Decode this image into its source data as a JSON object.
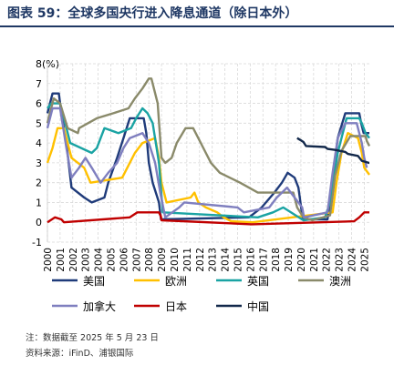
{
  "page": {
    "title": "图表 59：全球多国央行进入降息通道（除日本外）",
    "note": "注：数据截至 2025 年 5 月 23 日",
    "source": "资料来源：iFinD、浦银国际"
  },
  "chart_data": {
    "type": "line",
    "title": "",
    "ylabel": "(%)",
    "ylim": [
      -1,
      8
    ],
    "yticks": [
      -1,
      0,
      1,
      2,
      3,
      4,
      5,
      6,
      7,
      8
    ],
    "xlim": [
      2000,
      2025.4
    ],
    "xticks": [
      "2000",
      "2001",
      "2002",
      "2003",
      "2004",
      "2005",
      "2006",
      "2007",
      "2008",
      "2009",
      "2010",
      "2011",
      "2012",
      "2013",
      "2014",
      "2015",
      "2016",
      "2017",
      "2018",
      "2019",
      "2020",
      "2021",
      "2022",
      "2023",
      "2024",
      "2025"
    ],
    "legend_position": "bottom",
    "series": [
      {
        "name": "美国",
        "color": "#1f3b7a",
        "points": [
          [
            2000,
            5.5
          ],
          [
            2000.4,
            6.5
          ],
          [
            2000.9,
            6.5
          ],
          [
            2001.1,
            5.5
          ],
          [
            2001.5,
            4.0
          ],
          [
            2001.9,
            1.75
          ],
          [
            2002.9,
            1.25
          ],
          [
            2003.5,
            1.0
          ],
          [
            2004.5,
            1.25
          ],
          [
            2004.8,
            2.0
          ],
          [
            2005.5,
            3.25
          ],
          [
            2006.0,
            4.25
          ],
          [
            2006.5,
            5.25
          ],
          [
            2007.6,
            5.25
          ],
          [
            2007.8,
            4.5
          ],
          [
            2008.0,
            3.0
          ],
          [
            2008.3,
            2.0
          ],
          [
            2008.8,
            1.0
          ],
          [
            2008.96,
            0.15
          ],
          [
            2015.9,
            0.25
          ],
          [
            2016.9,
            0.75
          ],
          [
            2017.9,
            1.5
          ],
          [
            2018.5,
            2.0
          ],
          [
            2018.95,
            2.5
          ],
          [
            2019.5,
            2.25
          ],
          [
            2019.8,
            1.75
          ],
          [
            2020.15,
            0.15
          ],
          [
            2022.1,
            0.15
          ],
          [
            2022.4,
            1.5
          ],
          [
            2022.9,
            4.25
          ],
          [
            2023.5,
            5.5
          ],
          [
            2024.6,
            5.5
          ],
          [
            2024.75,
            5.0
          ],
          [
            2024.95,
            4.5
          ],
          [
            2025.4,
            4.5
          ]
        ]
      },
      {
        "name": "欧洲",
        "color": "#ffc000",
        "points": [
          [
            2000,
            3.0
          ],
          [
            2000.4,
            3.75
          ],
          [
            2000.8,
            4.75
          ],
          [
            2001.3,
            4.75
          ],
          [
            2001.7,
            3.75
          ],
          [
            2001.9,
            3.25
          ],
          [
            2002.9,
            2.75
          ],
          [
            2003.4,
            2.0
          ],
          [
            2005.9,
            2.25
          ],
          [
            2006.5,
            3.0
          ],
          [
            2006.9,
            3.5
          ],
          [
            2007.5,
            4.0
          ],
          [
            2008.5,
            4.25
          ],
          [
            2008.8,
            3.25
          ],
          [
            2009.0,
            2.0
          ],
          [
            2009.4,
            1.0
          ],
          [
            2011.3,
            1.25
          ],
          [
            2011.6,
            1.5
          ],
          [
            2011.9,
            1.0
          ],
          [
            2012.5,
            0.75
          ],
          [
            2013.4,
            0.5
          ],
          [
            2013.9,
            0.25
          ],
          [
            2014.5,
            0.05
          ],
          [
            2016.2,
            0.0
          ],
          [
            2022.5,
            0.5
          ],
          [
            2022.8,
            2.0
          ],
          [
            2023.2,
            3.5
          ],
          [
            2023.7,
            4.5
          ],
          [
            2024.5,
            4.25
          ],
          [
            2024.8,
            3.5
          ],
          [
            2025.0,
            2.75
          ],
          [
            2025.4,
            2.4
          ]
        ]
      },
      {
        "name": "英国",
        "color": "#1aa3a3",
        "points": [
          [
            2000,
            5.75
          ],
          [
            2000.3,
            6.0
          ],
          [
            2001.0,
            6.0
          ],
          [
            2001.4,
            5.0
          ],
          [
            2001.8,
            4.0
          ],
          [
            2003.5,
            3.5
          ],
          [
            2003.9,
            3.75
          ],
          [
            2004.5,
            4.75
          ],
          [
            2005.6,
            4.5
          ],
          [
            2006.6,
            4.75
          ],
          [
            2007.0,
            5.25
          ],
          [
            2007.5,
            5.75
          ],
          [
            2007.9,
            5.5
          ],
          [
            2008.3,
            5.0
          ],
          [
            2008.8,
            3.0
          ],
          [
            2009.1,
            0.5
          ],
          [
            2016.6,
            0.25
          ],
          [
            2017.8,
            0.5
          ],
          [
            2018.6,
            0.75
          ],
          [
            2020.2,
            0.1
          ],
          [
            2021.9,
            0.25
          ],
          [
            2022.3,
            1.0
          ],
          [
            2022.9,
            3.5
          ],
          [
            2023.6,
            5.25
          ],
          [
            2024.6,
            5.25
          ],
          [
            2024.8,
            5.0
          ],
          [
            2025.1,
            4.5
          ],
          [
            2025.4,
            4.25
          ]
        ]
      },
      {
        "name": "澳洲",
        "color": "#8a8a6a",
        "points": [
          [
            2000,
            5.0
          ],
          [
            2000.5,
            6.25
          ],
          [
            2001.0,
            6.0
          ],
          [
            2001.6,
            4.75
          ],
          [
            2002.4,
            4.5
          ],
          [
            2002.5,
            4.75
          ],
          [
            2003.9,
            5.25
          ],
          [
            2005.2,
            5.5
          ],
          [
            2006.4,
            5.75
          ],
          [
            2006.9,
            6.25
          ],
          [
            2007.5,
            6.75
          ],
          [
            2008.0,
            7.25
          ],
          [
            2008.2,
            7.25
          ],
          [
            2008.7,
            6.0
          ],
          [
            2009.0,
            3.25
          ],
          [
            2009.3,
            3.0
          ],
          [
            2009.8,
            3.25
          ],
          [
            2010.2,
            4.0
          ],
          [
            2010.9,
            4.75
          ],
          [
            2011.5,
            4.75
          ],
          [
            2011.9,
            4.25
          ],
          [
            2012.5,
            3.5
          ],
          [
            2012.9,
            3.0
          ],
          [
            2013.6,
            2.5
          ],
          [
            2015.2,
            2.0
          ],
          [
            2016.6,
            1.5
          ],
          [
            2019.4,
            1.5
          ],
          [
            2019.7,
            0.75
          ],
          [
            2020.2,
            0.25
          ],
          [
            2020.9,
            0.1
          ],
          [
            2022.3,
            0.35
          ],
          [
            2022.7,
            2.35
          ],
          [
            2023.2,
            3.6
          ],
          [
            2023.9,
            4.35
          ],
          [
            2025.1,
            4.35
          ],
          [
            2025.2,
            4.1
          ],
          [
            2025.4,
            3.85
          ]
        ]
      },
      {
        "name": "加拿大",
        "color": "#7f7fbf",
        "points": [
          [
            2000,
            4.75
          ],
          [
            2000.4,
            5.75
          ],
          [
            2001.0,
            5.75
          ],
          [
            2001.5,
            3.75
          ],
          [
            2001.9,
            2.25
          ],
          [
            2002.5,
            2.75
          ],
          [
            2003.0,
            3.25
          ],
          [
            2003.5,
            2.75
          ],
          [
            2004.2,
            2.0
          ],
          [
            2004.8,
            2.5
          ],
          [
            2005.5,
            3.0
          ],
          [
            2006.0,
            3.75
          ],
          [
            2006.5,
            4.25
          ],
          [
            2007.5,
            4.5
          ],
          [
            2008.0,
            4.0
          ],
          [
            2008.5,
            3.0
          ],
          [
            2008.9,
            1.5
          ],
          [
            2009.3,
            0.25
          ],
          [
            2010.4,
            0.75
          ],
          [
            2010.8,
            1.0
          ],
          [
            2015.0,
            0.75
          ],
          [
            2015.5,
            0.5
          ],
          [
            2017.5,
            0.75
          ],
          [
            2017.8,
            1.0
          ],
          [
            2018.1,
            1.25
          ],
          [
            2018.5,
            1.5
          ],
          [
            2018.9,
            1.75
          ],
          [
            2020.1,
            0.75
          ],
          [
            2020.25,
            0.25
          ],
          [
            2022.1,
            0.5
          ],
          [
            2022.5,
            2.5
          ],
          [
            2022.9,
            4.25
          ],
          [
            2023.5,
            5.0
          ],
          [
            2024.4,
            5.0
          ],
          [
            2024.8,
            4.0
          ],
          [
            2025.0,
            3.25
          ],
          [
            2025.2,
            2.75
          ]
        ]
      },
      {
        "name": "日本",
        "color": "#c00000",
        "points": [
          [
            2000,
            0.0
          ],
          [
            2000.6,
            0.25
          ],
          [
            2001.1,
            0.15
          ],
          [
            2001.3,
            0.0
          ],
          [
            2006.5,
            0.25
          ],
          [
            2007.1,
            0.5
          ],
          [
            2008.8,
            0.5
          ],
          [
            2008.95,
            0.3
          ],
          [
            2009.0,
            0.1
          ],
          [
            2016.1,
            -0.1
          ],
          [
            2024.2,
            0.05
          ],
          [
            2024.6,
            0.25
          ],
          [
            2025.0,
            0.5
          ],
          [
            2025.4,
            0.5
          ]
        ]
      },
      {
        "name": "中国",
        "color": "#12284a",
        "points": [
          [
            2019.7,
            4.25
          ],
          [
            2019.95,
            4.15
          ],
          [
            2020.2,
            4.05
          ],
          [
            2020.4,
            3.85
          ],
          [
            2021.9,
            3.8
          ],
          [
            2022.1,
            3.7
          ],
          [
            2022.7,
            3.65
          ],
          [
            2023.5,
            3.55
          ],
          [
            2023.7,
            3.45
          ],
          [
            2024.5,
            3.35
          ],
          [
            2024.8,
            3.1
          ],
          [
            2025.35,
            3.0
          ],
          [
            2025.4,
            3.0
          ]
        ]
      }
    ]
  }
}
